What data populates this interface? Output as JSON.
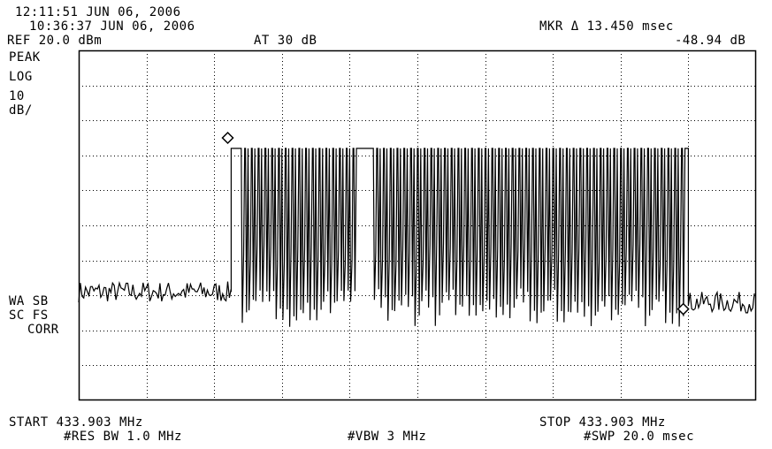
{
  "header": {
    "timestamp_1": "12:11:51 JUN 06, 2006",
    "timestamp_2": "10:36:37 JUN 06, 2006",
    "ref_level": "REF 20.0 dBm",
    "attenuation": "AT 30 dB",
    "marker_label": "MKR Δ 13.450 msec",
    "marker_value": "-48.94 dB"
  },
  "left_labels": {
    "detector": "PEAK",
    "scale_mode": "LOG",
    "scale_value": "10",
    "scale_unit": "dB/",
    "wa_sb": "WA SB",
    "sc_fs": "SC FS",
    "corr": "CORR"
  },
  "footer": {
    "start": "START 433.903 MHz",
    "stop": "STOP 433.903 MHz",
    "res_bw": "#RES BW 1.0 MHz",
    "vbw": "#VBW 3 MHz",
    "sweep": "#SWP 20.0 msec"
  },
  "colors": {
    "trace": "#000000",
    "grid": "#000000",
    "background": "#ffffff"
  },
  "chart_data": {
    "type": "line",
    "title": "",
    "xlabel": "",
    "ylabel": "",
    "x_unit": "msec",
    "y_unit": "dBm",
    "xlim": [
      0,
      20.0
    ],
    "ylim": [
      -80,
      20
    ],
    "grid": true,
    "grid_divisions": {
      "x": 10,
      "y": 10
    },
    "noise_floor_dbm": -49,
    "burst": {
      "start_ms": 4.5,
      "end_ms": 18.0,
      "high_level_dbm": -8,
      "low_level_dbm": -55,
      "first_pulse_high_end_ms": 4.8,
      "gap_start_ms": 8.3,
      "gap_end_ms": 8.7,
      "pulse_period_ms": 0.2
    },
    "markers": [
      {
        "name": "reference",
        "x_ms": 4.4,
        "y_dbm": -5
      },
      {
        "name": "delta",
        "x_ms": 17.85,
        "y_dbm": -53.9
      }
    ]
  }
}
